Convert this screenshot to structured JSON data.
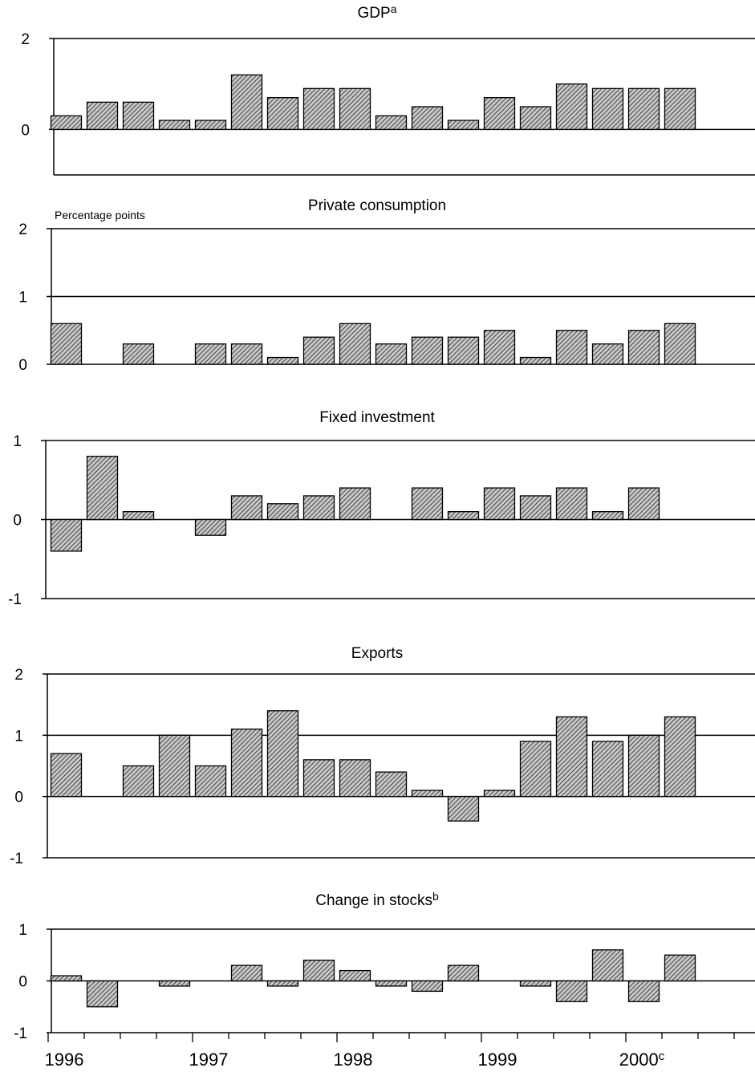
{
  "chart_data": [
    {
      "type": "bar",
      "title": "GDP",
      "title_superscript": "a",
      "subtitle": "",
      "ylim": [
        -1,
        2
      ],
      "yticks": [
        "2",
        "0"
      ],
      "yticks_values": [
        2,
        0
      ],
      "values": [
        0.3,
        0.6,
        0.6,
        0.2,
        0.2,
        1.2,
        0.7,
        0.9,
        0.9,
        0.3,
        0.5,
        0.2,
        0.7,
        0.5,
        1.0,
        0.9,
        0.9,
        0.9
      ]
    },
    {
      "type": "bar",
      "title": "Private consumption",
      "title_superscript": "",
      "subtitle": "Percentage points",
      "ylim": [
        0,
        2
      ],
      "yticks": [
        "2",
        "1",
        "0"
      ],
      "yticks_values": [
        2,
        1,
        0
      ],
      "values": [
        0.6,
        0.0,
        0.3,
        0.0,
        0.3,
        0.3,
        0.1,
        0.4,
        0.6,
        0.3,
        0.4,
        0.4,
        0.5,
        0.1,
        0.5,
        0.3,
        0.5,
        0.6
      ]
    },
    {
      "type": "bar",
      "title": "Fixed investment",
      "title_superscript": "",
      "subtitle": "",
      "ylim": [
        -1,
        1
      ],
      "yticks": [
        "1",
        "0",
        "-1"
      ],
      "yticks_values": [
        1,
        0,
        -1
      ],
      "values": [
        -0.4,
        0.8,
        0.1,
        0.0,
        -0.2,
        0.3,
        0.2,
        0.3,
        0.4,
        0.0,
        0.4,
        0.1,
        0.4,
        0.3,
        0.4,
        0.1,
        0.4,
        0.0
      ]
    },
    {
      "type": "bar",
      "title": "Exports",
      "title_superscript": "",
      "subtitle": "",
      "ylim": [
        -1,
        2
      ],
      "yticks": [
        "2",
        "1",
        "0",
        "-1"
      ],
      "yticks_values": [
        2,
        1,
        0,
        -1
      ],
      "values": [
        0.7,
        0.0,
        0.5,
        1.0,
        0.5,
        1.1,
        1.4,
        0.6,
        0.6,
        0.4,
        0.1,
        -0.4,
        0.1,
        0.9,
        1.3,
        0.9,
        1.0,
        1.3
      ]
    },
    {
      "type": "bar",
      "title": "Change in stocks",
      "title_superscript": "b",
      "subtitle": "",
      "ylim": [
        -1,
        1
      ],
      "yticks": [
        "1",
        "0",
        "-1"
      ],
      "yticks_values": [
        1,
        0,
        -1
      ],
      "values": [
        0.1,
        -0.5,
        0.0,
        -0.1,
        0.0,
        0.3,
        -0.1,
        0.4,
        0.2,
        -0.1,
        -0.2,
        0.3,
        0.0,
        -0.1,
        -0.4,
        0.6,
        -0.4,
        0.5
      ]
    }
  ],
  "x_axis": {
    "years": [
      {
        "label": "1996",
        "superscript": "",
        "quarter_index": 0
      },
      {
        "label": "1997",
        "superscript": "",
        "quarter_index": 4
      },
      {
        "label": "1998",
        "superscript": "",
        "quarter_index": 8
      },
      {
        "label": "1999",
        "superscript": "",
        "quarter_index": 12
      },
      {
        "label": "2000",
        "superscript": "c",
        "quarter_index": 16
      }
    ],
    "quarters_count": 20
  },
  "colors": {
    "bar_fill": "#c8c8c8",
    "hatch": "#222222",
    "axis": "#000000"
  }
}
